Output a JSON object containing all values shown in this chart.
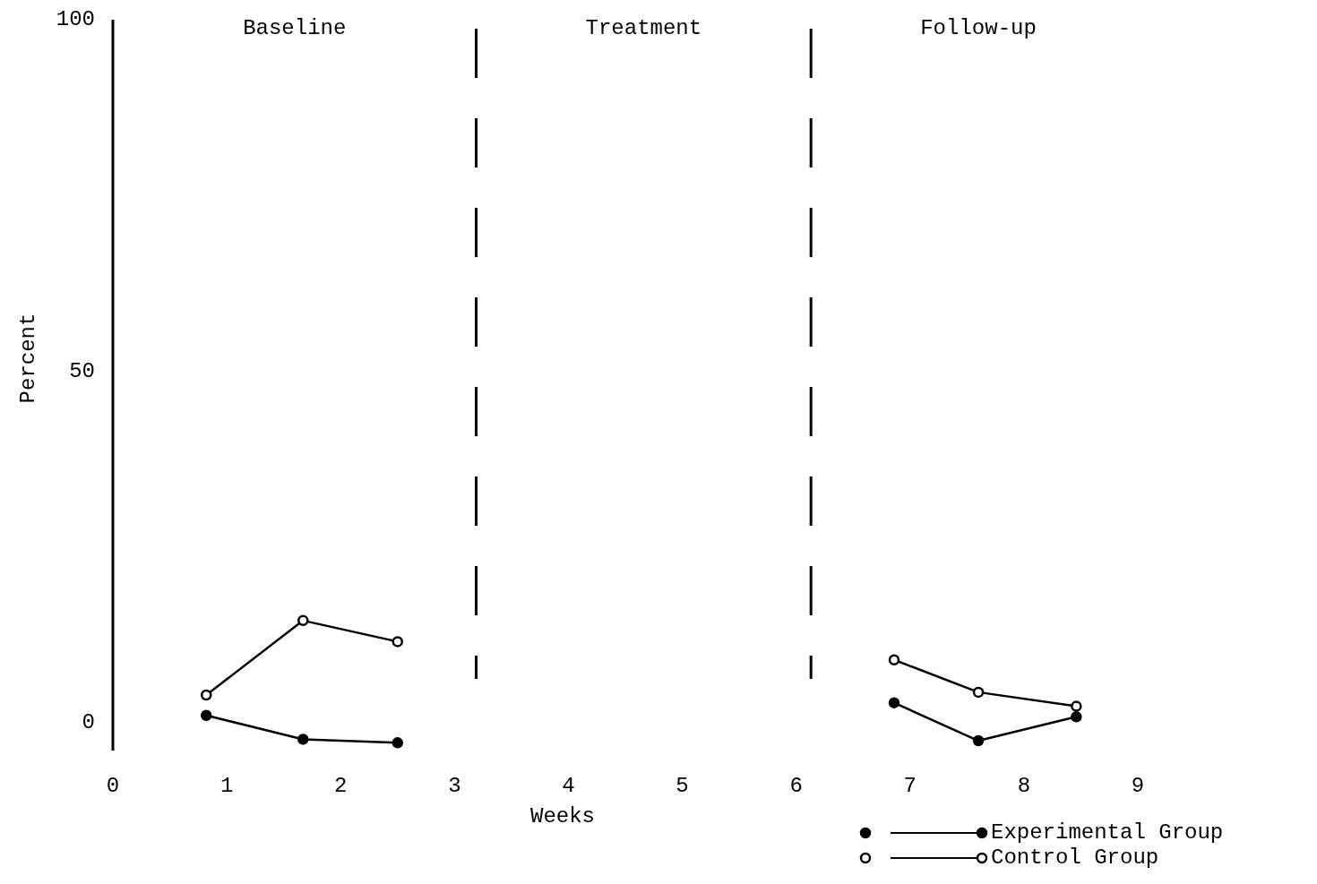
{
  "chart_data": {
    "type": "line",
    "xlabel": "Weeks",
    "ylabel": "Percent",
    "x": [
      0.82,
      1.67,
      2.5,
      4.5,
      6.86,
      7.6,
      8.46
    ],
    "series": [
      {
        "name": "Experimental Group",
        "color": "#000000",
        "values": [
          1.0,
          -2.4,
          -2.9,
          null,
          2.8,
          -2.6,
          0.8
        ]
      },
      {
        "name": "Control Group",
        "color": "#000000",
        "values": [
          3.9,
          14.5,
          11.5,
          null,
          8.9,
          4.3,
          2.3
        ]
      }
    ],
    "xlim": [
      0,
      9
    ],
    "xticks": [
      0,
      1,
      2,
      3,
      4,
      5,
      6,
      7,
      8,
      9
    ],
    "ylim": [
      -4,
      100
    ],
    "yticks": [
      0,
      50,
      100
    ],
    "ref_lines": [
      {
        "axis": "x",
        "value": 3.19,
        "line_style": "dashed"
      },
      {
        "axis": "x",
        "value": 6.13,
        "line_style": "dashed"
      }
    ],
    "annotations": [
      "Baseline",
      "Treatment",
      "Follow-up"
    ],
    "marker": "circle",
    "line_style": "solid",
    "legend": "bottom right",
    "grid": false
  }
}
